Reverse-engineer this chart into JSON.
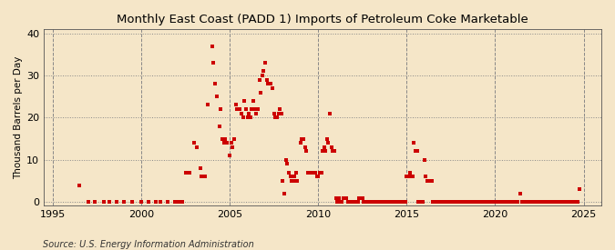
{
  "title": "Monthly East Coast (PADD 1) Imports of Petroleum Coke Marketable",
  "ylabel": "Thousand Barrels per Day",
  "source": "Source: U.S. Energy Information Administration",
  "bg_color": "#f5e6c8",
  "plot_bg_color": "#f5e6c8",
  "marker_color": "#cc0000",
  "xlim": [
    1994.5,
    2026.0
  ],
  "ylim": [
    -0.8,
    41
  ],
  "yticks": [
    0,
    10,
    20,
    30,
    40
  ],
  "xticks": [
    1995,
    2000,
    2005,
    2010,
    2015,
    2020,
    2025
  ],
  "data_points": [
    [
      1996.5,
      4
    ],
    [
      1997.0,
      0
    ],
    [
      1997.4,
      0
    ],
    [
      1997.9,
      0
    ],
    [
      1998.2,
      0
    ],
    [
      1998.6,
      0
    ],
    [
      1999.0,
      0
    ],
    [
      1999.5,
      0
    ],
    [
      2000.0,
      0
    ],
    [
      2000.4,
      0
    ],
    [
      2000.8,
      0
    ],
    [
      2001.1,
      0
    ],
    [
      2001.5,
      0
    ],
    [
      2001.9,
      0
    ],
    [
      2002.1,
      0
    ],
    [
      2002.3,
      0
    ],
    [
      2002.5,
      7
    ],
    [
      2002.75,
      7
    ],
    [
      2003.0,
      14
    ],
    [
      2003.15,
      13
    ],
    [
      2003.33,
      8
    ],
    [
      2003.42,
      6
    ],
    [
      2003.58,
      6
    ],
    [
      2003.75,
      23
    ],
    [
      2004.0,
      37
    ],
    [
      2004.08,
      33
    ],
    [
      2004.17,
      28
    ],
    [
      2004.25,
      25
    ],
    [
      2004.42,
      18
    ],
    [
      2004.5,
      22
    ],
    [
      2004.58,
      15
    ],
    [
      2004.67,
      14
    ],
    [
      2004.75,
      15
    ],
    [
      2004.83,
      14
    ],
    [
      2005.0,
      11
    ],
    [
      2005.08,
      14
    ],
    [
      2005.17,
      13
    ],
    [
      2005.25,
      15
    ],
    [
      2005.33,
      23
    ],
    [
      2005.42,
      22
    ],
    [
      2005.5,
      22
    ],
    [
      2005.58,
      22
    ],
    [
      2005.67,
      21
    ],
    [
      2005.75,
      20
    ],
    [
      2005.83,
      24
    ],
    [
      2005.92,
      22
    ],
    [
      2006.0,
      20
    ],
    [
      2006.08,
      21
    ],
    [
      2006.17,
      20
    ],
    [
      2006.25,
      22
    ],
    [
      2006.33,
      24
    ],
    [
      2006.42,
      22
    ],
    [
      2006.5,
      21
    ],
    [
      2006.58,
      22
    ],
    [
      2006.67,
      29
    ],
    [
      2006.75,
      26
    ],
    [
      2006.83,
      30
    ],
    [
      2006.92,
      31
    ],
    [
      2007.0,
      33
    ],
    [
      2007.08,
      29
    ],
    [
      2007.17,
      28
    ],
    [
      2007.25,
      28
    ],
    [
      2007.33,
      28
    ],
    [
      2007.42,
      27
    ],
    [
      2007.5,
      21
    ],
    [
      2007.58,
      20
    ],
    [
      2007.67,
      20
    ],
    [
      2007.75,
      21
    ],
    [
      2007.83,
      22
    ],
    [
      2007.92,
      21
    ],
    [
      2008.0,
      5
    ],
    [
      2008.08,
      2
    ],
    [
      2008.17,
      10
    ],
    [
      2008.25,
      9
    ],
    [
      2008.33,
      7
    ],
    [
      2008.42,
      6
    ],
    [
      2008.5,
      5
    ],
    [
      2008.58,
      5
    ],
    [
      2008.67,
      6
    ],
    [
      2008.75,
      7
    ],
    [
      2008.83,
      5
    ],
    [
      2009.0,
      14
    ],
    [
      2009.08,
      15
    ],
    [
      2009.17,
      15
    ],
    [
      2009.25,
      13
    ],
    [
      2009.33,
      12
    ],
    [
      2009.42,
      7
    ],
    [
      2009.5,
      7
    ],
    [
      2009.58,
      7
    ],
    [
      2009.67,
      7
    ],
    [
      2009.75,
      7
    ],
    [
      2009.83,
      7
    ],
    [
      2009.92,
      6
    ],
    [
      2010.0,
      6
    ],
    [
      2010.08,
      7
    ],
    [
      2010.17,
      7
    ],
    [
      2010.25,
      12
    ],
    [
      2010.33,
      13
    ],
    [
      2010.42,
      12
    ],
    [
      2010.5,
      15
    ],
    [
      2010.58,
      14
    ],
    [
      2010.67,
      21
    ],
    [
      2010.75,
      13
    ],
    [
      2010.83,
      12
    ],
    [
      2010.92,
      12
    ],
    [
      2011.0,
      1
    ],
    [
      2011.08,
      0
    ],
    [
      2011.17,
      1
    ],
    [
      2011.25,
      0
    ],
    [
      2011.33,
      0
    ],
    [
      2011.42,
      1
    ],
    [
      2011.5,
      1
    ],
    [
      2011.58,
      1
    ],
    [
      2011.67,
      0
    ],
    [
      2011.75,
      0
    ],
    [
      2011.83,
      0
    ],
    [
      2011.92,
      0
    ],
    [
      2012.0,
      0
    ],
    [
      2012.08,
      0
    ],
    [
      2012.17,
      0
    ],
    [
      2012.25,
      0
    ],
    [
      2012.33,
      1
    ],
    [
      2012.42,
      1
    ],
    [
      2012.5,
      1
    ],
    [
      2012.58,
      0
    ],
    [
      2012.67,
      0
    ],
    [
      2012.75,
      0
    ],
    [
      2012.83,
      0
    ],
    [
      2012.92,
      0
    ],
    [
      2013.0,
      0
    ],
    [
      2013.08,
      0
    ],
    [
      2013.17,
      0
    ],
    [
      2013.25,
      0
    ],
    [
      2013.33,
      0
    ],
    [
      2013.42,
      0
    ],
    [
      2013.5,
      0
    ],
    [
      2013.58,
      0
    ],
    [
      2013.67,
      0
    ],
    [
      2013.75,
      0
    ],
    [
      2013.83,
      0
    ],
    [
      2013.92,
      0
    ],
    [
      2014.0,
      0
    ],
    [
      2014.08,
      0
    ],
    [
      2014.17,
      0
    ],
    [
      2014.25,
      0
    ],
    [
      2014.33,
      0
    ],
    [
      2014.42,
      0
    ],
    [
      2014.5,
      0
    ],
    [
      2014.58,
      0
    ],
    [
      2014.67,
      0
    ],
    [
      2014.75,
      0
    ],
    [
      2014.83,
      0
    ],
    [
      2014.92,
      0
    ],
    [
      2015.0,
      6
    ],
    [
      2015.08,
      6
    ],
    [
      2015.17,
      7
    ],
    [
      2015.25,
      6
    ],
    [
      2015.33,
      6
    ],
    [
      2015.42,
      14
    ],
    [
      2015.5,
      12
    ],
    [
      2015.58,
      12
    ],
    [
      2015.67,
      0
    ],
    [
      2015.75,
      0
    ],
    [
      2015.83,
      0
    ],
    [
      2015.92,
      0
    ],
    [
      2016.0,
      10
    ],
    [
      2016.08,
      6
    ],
    [
      2016.17,
      5
    ],
    [
      2016.25,
      5
    ],
    [
      2016.33,
      5
    ],
    [
      2016.42,
      5
    ],
    [
      2016.5,
      0
    ],
    [
      2016.58,
      0
    ],
    [
      2016.67,
      0
    ],
    [
      2016.75,
      0
    ],
    [
      2016.83,
      0
    ],
    [
      2016.92,
      0
    ],
    [
      2017.0,
      0
    ],
    [
      2017.08,
      0
    ],
    [
      2017.17,
      0
    ],
    [
      2017.25,
      0
    ],
    [
      2017.33,
      0
    ],
    [
      2017.42,
      0
    ],
    [
      2017.5,
      0
    ],
    [
      2017.58,
      0
    ],
    [
      2017.67,
      0
    ],
    [
      2017.75,
      0
    ],
    [
      2017.83,
      0
    ],
    [
      2017.92,
      0
    ],
    [
      2018.0,
      0
    ],
    [
      2018.08,
      0
    ],
    [
      2018.17,
      0
    ],
    [
      2018.25,
      0
    ],
    [
      2018.33,
      0
    ],
    [
      2018.42,
      0
    ],
    [
      2018.5,
      0
    ],
    [
      2018.58,
      0
    ],
    [
      2018.67,
      0
    ],
    [
      2018.75,
      0
    ],
    [
      2018.83,
      0
    ],
    [
      2018.92,
      0
    ],
    [
      2019.0,
      0
    ],
    [
      2019.08,
      0
    ],
    [
      2019.17,
      0
    ],
    [
      2019.25,
      0
    ],
    [
      2019.33,
      0
    ],
    [
      2019.42,
      0
    ],
    [
      2019.5,
      0
    ],
    [
      2019.58,
      0
    ],
    [
      2019.67,
      0
    ],
    [
      2019.75,
      0
    ],
    [
      2019.83,
      0
    ],
    [
      2019.92,
      0
    ],
    [
      2020.0,
      0
    ],
    [
      2020.08,
      0
    ],
    [
      2020.17,
      0
    ],
    [
      2020.25,
      0
    ],
    [
      2020.33,
      0
    ],
    [
      2020.42,
      0
    ],
    [
      2020.5,
      0
    ],
    [
      2020.58,
      0
    ],
    [
      2020.67,
      0
    ],
    [
      2020.75,
      0
    ],
    [
      2020.83,
      0
    ],
    [
      2020.92,
      0
    ],
    [
      2021.0,
      0
    ],
    [
      2021.08,
      0
    ],
    [
      2021.17,
      0
    ],
    [
      2021.25,
      0
    ],
    [
      2021.42,
      2
    ],
    [
      2021.5,
      0
    ],
    [
      2021.58,
      0
    ],
    [
      2021.67,
      0
    ],
    [
      2021.75,
      0
    ],
    [
      2021.83,
      0
    ],
    [
      2021.92,
      0
    ],
    [
      2022.0,
      0
    ],
    [
      2022.08,
      0
    ],
    [
      2022.17,
      0
    ],
    [
      2022.25,
      0
    ],
    [
      2022.33,
      0
    ],
    [
      2022.42,
      0
    ],
    [
      2022.5,
      0
    ],
    [
      2022.58,
      0
    ],
    [
      2022.67,
      0
    ],
    [
      2022.75,
      0
    ],
    [
      2022.83,
      0
    ],
    [
      2022.92,
      0
    ],
    [
      2023.0,
      0
    ],
    [
      2023.08,
      0
    ],
    [
      2023.17,
      0
    ],
    [
      2023.25,
      0
    ],
    [
      2023.33,
      0
    ],
    [
      2023.42,
      0
    ],
    [
      2023.5,
      0
    ],
    [
      2023.58,
      0
    ],
    [
      2023.67,
      0
    ],
    [
      2023.75,
      0
    ],
    [
      2023.83,
      0
    ],
    [
      2023.92,
      0
    ],
    [
      2024.0,
      0
    ],
    [
      2024.08,
      0
    ],
    [
      2024.17,
      0
    ],
    [
      2024.25,
      0
    ],
    [
      2024.33,
      0
    ],
    [
      2024.42,
      0
    ],
    [
      2024.5,
      0
    ],
    [
      2024.58,
      0
    ],
    [
      2024.67,
      0
    ],
    [
      2024.75,
      3
    ]
  ]
}
